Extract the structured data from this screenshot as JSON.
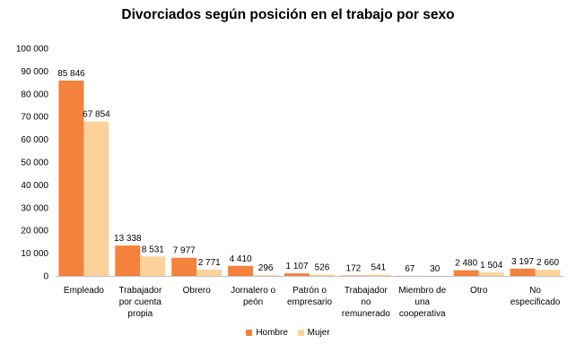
{
  "chart_data": {
    "type": "bar",
    "title": "Divorciados según posición en el trabajo por sexo",
    "categories": [
      [
        "Empleado"
      ],
      [
        "Trabajador",
        "por cuenta",
        "propia"
      ],
      [
        "Obrero"
      ],
      [
        "Jornalero o",
        "peón"
      ],
      [
        "Patrón o",
        "empresario"
      ],
      [
        "Trabajador",
        "no",
        "remunerado"
      ],
      [
        "Miembro de",
        "una",
        "cooperativa"
      ],
      [
        "Otro"
      ],
      [
        "No",
        "especificado"
      ]
    ],
    "series": [
      {
        "name": "Hombre",
        "color": "#f4813c",
        "values": [
          85846,
          13338,
          7977,
          4410,
          1107,
          172,
          67,
          2480,
          3197
        ],
        "labels": [
          "85 846",
          "13 338",
          "7 977",
          "4 410",
          "1 107",
          "172",
          "67",
          "2 480",
          "3 197"
        ]
      },
      {
        "name": "Mujer",
        "color": "#fdd29a",
        "values": [
          67854,
          8531,
          2771,
          296,
          526,
          541,
          30,
          1504,
          2660
        ],
        "labels": [
          "67 854",
          "8 531",
          "2 771",
          "296",
          "526",
          "541",
          "30",
          "1 504",
          "2 660"
        ]
      }
    ],
    "ylim": [
      0,
      100000
    ],
    "yticks": [
      0,
      10000,
      20000,
      30000,
      40000,
      50000,
      60000,
      70000,
      80000,
      90000,
      100000
    ],
    "ytick_labels": [
      "0",
      "10 000",
      "20 000",
      "30 000",
      "40 000",
      "50 000",
      "60 000",
      "70 000",
      "80 000",
      "90 000",
      "100 000"
    ],
    "grid": false,
    "legend_position": "bottom"
  }
}
